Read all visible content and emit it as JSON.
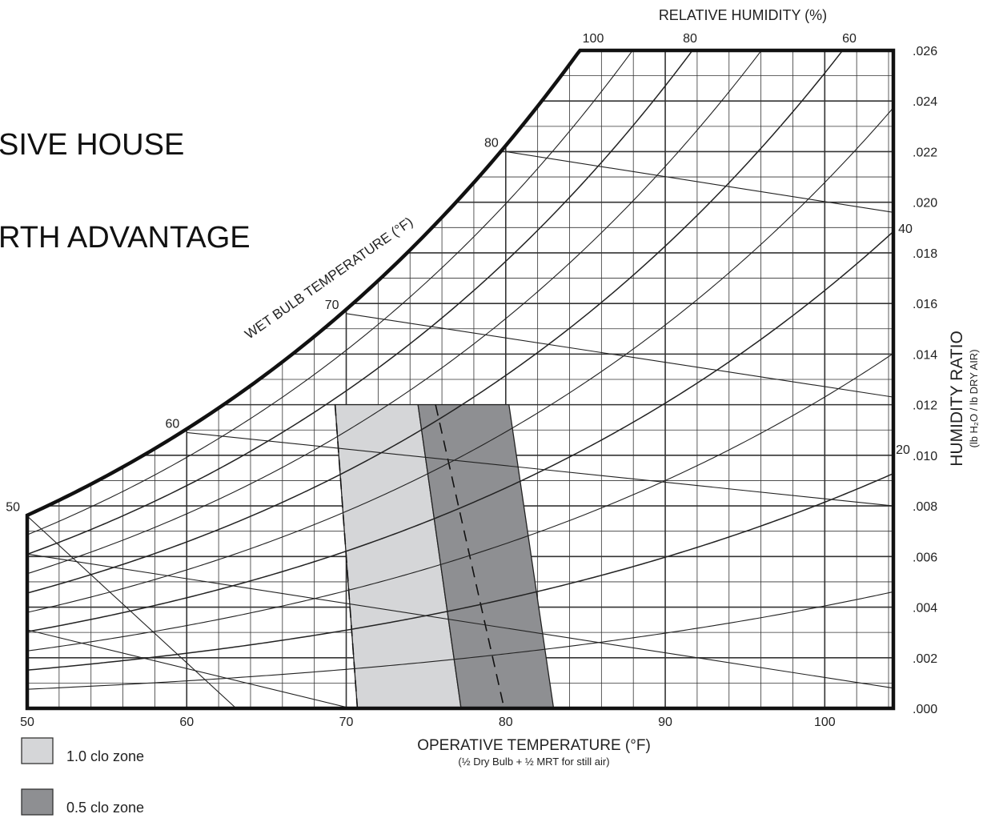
{
  "slide": {
    "line1": "SIVE HOUSE",
    "line2": "RTH ADVANTAGE"
  },
  "colors": {
    "zone_1_0_clo": "#d5d6d8",
    "zone_0_5_clo": "#8e8f92",
    "line": "#222222",
    "grid": "#333333"
  },
  "chart_data": {
    "type": "psychrometric",
    "title": "",
    "xlabel": "OPERATIVE TEMPERATURE (°F)",
    "xlabel_note": "(½ Dry Bulb + ½ MRT for still air)",
    "ylabel": "HUMIDITY RATIO",
    "ylabel_note": "(lb H₂O / lb DRY AIR)",
    "top_label": "RELATIVE HUMIDITY (%)",
    "wetbulb_label": "WET BULB TEMPERATURE (°F)",
    "xlim": [
      50,
      104.3
    ],
    "ylim": [
      0,
      0.026
    ],
    "x_ticks": [
      "50",
      "60",
      "70",
      "80",
      "90",
      "100"
    ],
    "x_tick_values": [
      50,
      60,
      70,
      80,
      90,
      100
    ],
    "y_ticks": [
      ".000",
      ".002",
      ".004",
      ".006",
      ".008",
      ".010",
      ".012",
      ".014",
      ".016",
      ".018",
      ".020",
      ".022",
      ".024",
      ".026"
    ],
    "y_tick_values": [
      0,
      0.002,
      0.004,
      0.006,
      0.008,
      0.01,
      0.012,
      0.014,
      0.016,
      0.018,
      0.02,
      0.022,
      0.024,
      0.026
    ],
    "rh_curves": [
      {
        "label": "100",
        "rh": 100
      },
      {
        "label": "80",
        "rh": 80
      },
      {
        "label": "60",
        "rh": 60
      },
      {
        "label": "40",
        "rh": 40
      },
      {
        "label": "20",
        "rh": 20
      }
    ],
    "wetbulb_lines": [
      {
        "label": "50",
        "points": [
          [
            50.0,
            0.0076
          ],
          [
            63.1,
            0.0
          ]
        ]
      },
      {
        "label": "60",
        "points": [
          [
            60.0,
            0.0109
          ],
          [
            104.3,
            0.008
          ]
        ]
      },
      {
        "label": "70",
        "points": [
          [
            70.0,
            0.0156
          ],
          [
            104.3,
            0.0123
          ]
        ]
      },
      {
        "label": "80",
        "points": [
          [
            80.0,
            0.022
          ],
          [
            104.3,
            0.0196
          ]
        ]
      }
    ],
    "comfort_zones": [
      {
        "name": "1.0 clo zone",
        "color": "#d5d6d8",
        "polygon": [
          [
            69.3,
            0.012
          ],
          [
            74.5,
            0.012
          ],
          [
            77.2,
            0.0
          ],
          [
            70.7,
            0.0
          ]
        ]
      },
      {
        "name": "0.5 clo zone",
        "color": "#8e8f92",
        "polygon": [
          [
            74.5,
            0.012
          ],
          [
            80.2,
            0.012
          ],
          [
            83.0,
            0.0
          ],
          [
            77.2,
            0.0
          ]
        ]
      }
    ],
    "dashed_boundaries": [
      [
        [
          69.3,
          0.012
        ],
        [
          70.7,
          0.0
        ]
      ],
      [
        [
          75.6,
          0.012
        ],
        [
          79.9,
          0.0
        ]
      ]
    ],
    "legend": [
      {
        "label": "1.0 clo zone",
        "color": "#d5d6d8"
      },
      {
        "label": "0.5 clo zone",
        "color": "#8e8f92"
      }
    ],
    "legend_position": "bottom-left",
    "grid": true
  }
}
